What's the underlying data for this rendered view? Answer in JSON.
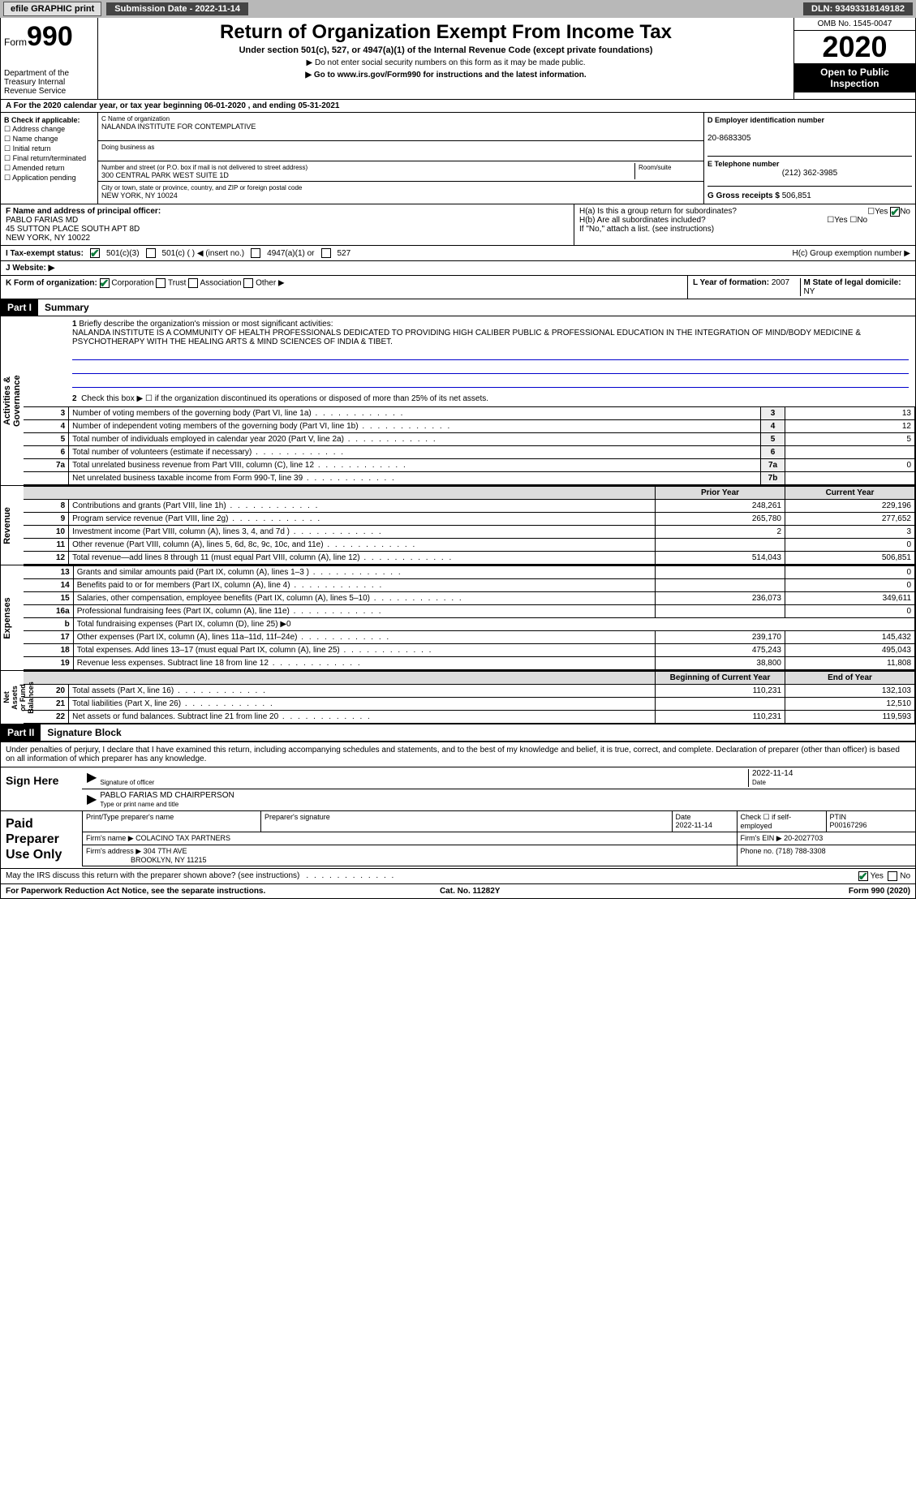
{
  "topbar": {
    "efile": "efile GRAPHIC print",
    "submission_label": "Submission Date - 2022-11-14",
    "dln": "DLN: 93493318149182"
  },
  "header": {
    "form_label": "Form",
    "form_num": "990",
    "dept": "Department of the Treasury Internal Revenue Service",
    "title": "Return of Organization Exempt From Income Tax",
    "sub1": "Under section 501(c), 527, or 4947(a)(1) of the Internal Revenue Code (except private foundations)",
    "sub2": "▶ Do not enter social security numbers on this form as it may be made public.",
    "sub3": "▶ Go to www.irs.gov/Form990 for instructions and the latest information.",
    "omb": "OMB No. 1545-0047",
    "year": "2020",
    "open": "Open to Public Inspection"
  },
  "sectionA": "A For the 2020 calendar year, or tax year beginning 06-01-2020    , and ending 05-31-2021",
  "B": {
    "title": "B Check if applicable:",
    "opts": [
      "Address change",
      "Name change",
      "Initial return",
      "Final return/terminated",
      "Amended return",
      "Application pending"
    ]
  },
  "C": {
    "name_lbl": "C Name of organization",
    "name": "NALANDA INSTITUTE FOR CONTEMPLATIVE",
    "dba_lbl": "Doing business as",
    "dba": "",
    "addr_lbl": "Number and street (or P.O. box if mail is not delivered to street address)",
    "room_lbl": "Room/suite",
    "addr": "300 CENTRAL PARK WEST SUITE 1D",
    "city_lbl": "City or town, state or province, country, and ZIP or foreign postal code",
    "city": "NEW YORK, NY  10024"
  },
  "D": {
    "lbl": "D Employer identification number",
    "val": "20-8683305"
  },
  "E": {
    "lbl": "E Telephone number",
    "val": "(212) 362-3985"
  },
  "G": {
    "lbl": "G Gross receipts $",
    "val": "506,851"
  },
  "F": {
    "lbl": "F  Name and address of principal officer:",
    "name": "PABLO FARIAS MD",
    "addr1": "45 SUTTON PLACE SOUTH APT 8D",
    "addr2": "NEW YORK, NY  10022"
  },
  "H": {
    "a": "H(a)  Is this a group return for subordinates?",
    "b": "H(b)  Are all subordinates included?",
    "b2": "If \"No,\" attach a list. (see instructions)",
    "c": "H(c)  Group exemption number ▶",
    "yes": "Yes",
    "no": "No"
  },
  "I": {
    "lbl": "I   Tax-exempt status:",
    "o1": "501(c)(3)",
    "o2": "501(c) (   ) ◀ (insert no.)",
    "o3": "4947(a)(1) or",
    "o4": "527"
  },
  "J": {
    "lbl": "J   Website: ▶"
  },
  "K": {
    "lbl": "K Form of organization:",
    "o1": "Corporation",
    "o2": "Trust",
    "o3": "Association",
    "o4": "Other ▶"
  },
  "L": {
    "lbl": "L Year of formation:",
    "val": "2007"
  },
  "M": {
    "lbl": "M State of legal domicile:",
    "val": "NY"
  },
  "part1": {
    "hdr": "Part I",
    "title": "Summary"
  },
  "mission": {
    "num": "1",
    "lbl": "Briefly describe the organization's mission or most significant activities:",
    "txt": "NALANDA INSTITUTE IS A COMMUNITY OF HEALTH PROFESSIONALS DEDICATED TO PROVIDING HIGH CALIBER PUBLIC & PROFESSIONAL EDUCATION IN THE INTEGRATION OF MIND/BODY MEDICINE & PSYCHOTHERAPY WITH THE HEALING ARTS & MIND SCIENCES OF INDIA & TIBET."
  },
  "gov": {
    "l2": "Check this box ▶ ☐ if the organization discontinued its operations or disposed of more than 25% of its net assets.",
    "rows": [
      {
        "n": "3",
        "d": "Number of voting members of the governing body (Part VI, line 1a)",
        "r": "3",
        "v": "13"
      },
      {
        "n": "4",
        "d": "Number of independent voting members of the governing body (Part VI, line 1b)",
        "r": "4",
        "v": "12"
      },
      {
        "n": "5",
        "d": "Total number of individuals employed in calendar year 2020 (Part V, line 2a)",
        "r": "5",
        "v": "5"
      },
      {
        "n": "6",
        "d": "Total number of volunteers (estimate if necessary)",
        "r": "6",
        "v": ""
      },
      {
        "n": "7a",
        "d": "Total unrelated business revenue from Part VIII, column (C), line 12",
        "r": "7a",
        "v": "0"
      },
      {
        "n": "",
        "d": "Net unrelated business taxable income from Form 990-T, line 39",
        "r": "7b",
        "v": ""
      }
    ]
  },
  "cols": {
    "prior": "Prior Year",
    "current": "Current Year",
    "boy": "Beginning of Current Year",
    "eoy": "End of Year"
  },
  "revenue": [
    {
      "n": "8",
      "d": "Contributions and grants (Part VIII, line 1h)",
      "p": "248,261",
      "c": "229,196"
    },
    {
      "n": "9",
      "d": "Program service revenue (Part VIII, line 2g)",
      "p": "265,780",
      "c": "277,652"
    },
    {
      "n": "10",
      "d": "Investment income (Part VIII, column (A), lines 3, 4, and 7d )",
      "p": "2",
      "c": "3"
    },
    {
      "n": "11",
      "d": "Other revenue (Part VIII, column (A), lines 5, 6d, 8c, 9c, 10c, and 11e)",
      "p": "",
      "c": "0"
    },
    {
      "n": "12",
      "d": "Total revenue—add lines 8 through 11 (must equal Part VIII, column (A), line 12)",
      "p": "514,043",
      "c": "506,851"
    }
  ],
  "expenses": [
    {
      "n": "13",
      "d": "Grants and similar amounts paid (Part IX, column (A), lines 1–3 )",
      "p": "",
      "c": "0"
    },
    {
      "n": "14",
      "d": "Benefits paid to or for members (Part IX, column (A), line 4)",
      "p": "",
      "c": "0"
    },
    {
      "n": "15",
      "d": "Salaries, other compensation, employee benefits (Part IX, column (A), lines 5–10)",
      "p": "236,073",
      "c": "349,611"
    },
    {
      "n": "16a",
      "d": "Professional fundraising fees (Part IX, column (A), line 11e)",
      "p": "",
      "c": "0"
    },
    {
      "n": "b",
      "d": "Total fundraising expenses (Part IX, column (D), line 25) ▶0",
      "p": "—",
      "c": "—"
    },
    {
      "n": "17",
      "d": "Other expenses (Part IX, column (A), lines 11a–11d, 11f–24e)",
      "p": "239,170",
      "c": "145,432"
    },
    {
      "n": "18",
      "d": "Total expenses. Add lines 13–17 (must equal Part IX, column (A), line 25)",
      "p": "475,243",
      "c": "495,043"
    },
    {
      "n": "19",
      "d": "Revenue less expenses. Subtract line 18 from line 12",
      "p": "38,800",
      "c": "11,808"
    }
  ],
  "netassets": [
    {
      "n": "20",
      "d": "Total assets (Part X, line 16)",
      "p": "110,231",
      "c": "132,103"
    },
    {
      "n": "21",
      "d": "Total liabilities (Part X, line 26)",
      "p": "",
      "c": "12,510"
    },
    {
      "n": "22",
      "d": "Net assets or fund balances. Subtract line 21 from line 20",
      "p": "110,231",
      "c": "119,593"
    }
  ],
  "tabs": {
    "gov": "Activities & Governance",
    "rev": "Revenue",
    "exp": "Expenses",
    "na": "Net Assets or Fund Balances"
  },
  "part2": {
    "hdr": "Part II",
    "title": "Signature Block"
  },
  "decl": "Under penalties of perjury, I declare that I have examined this return, including accompanying schedules and statements, and to the best of my knowledge and belief, it is true, correct, and complete. Declaration of preparer (other than officer) is based on all information of which preparer has any knowledge.",
  "sign": {
    "here": "Sign Here",
    "sig_lbl": "Signature of officer",
    "date": "2022-11-14",
    "date_lbl": "Date",
    "name": "PABLO FARIAS MD  CHAIRPERSON",
    "name_lbl": "Type or print name and title"
  },
  "prep": {
    "title": "Paid Preparer Use Only",
    "c1": "Print/Type preparer's name",
    "c2": "Preparer's signature",
    "c3": "Date",
    "c3v": "2022-11-14",
    "c4": "Check ☐ if self-employed",
    "c5": "PTIN",
    "c5v": "P00167296",
    "firm_lbl": "Firm's name    ▶",
    "firm": "COLACINO TAX PARTNERS",
    "ein_lbl": "Firm's EIN ▶",
    "ein": "20-2027703",
    "addr_lbl": "Firm's address ▶",
    "addr": "304 7TH AVE",
    "addr2": "BROOKLYN, NY  11215",
    "phone_lbl": "Phone no.",
    "phone": "(718) 788-3308"
  },
  "discuss": "May the IRS discuss this return with the preparer shown above? (see instructions)",
  "footer": {
    "l": "For Paperwork Reduction Act Notice, see the separate instructions.",
    "m": "Cat. No. 11282Y",
    "r": "Form 990 (2020)"
  }
}
